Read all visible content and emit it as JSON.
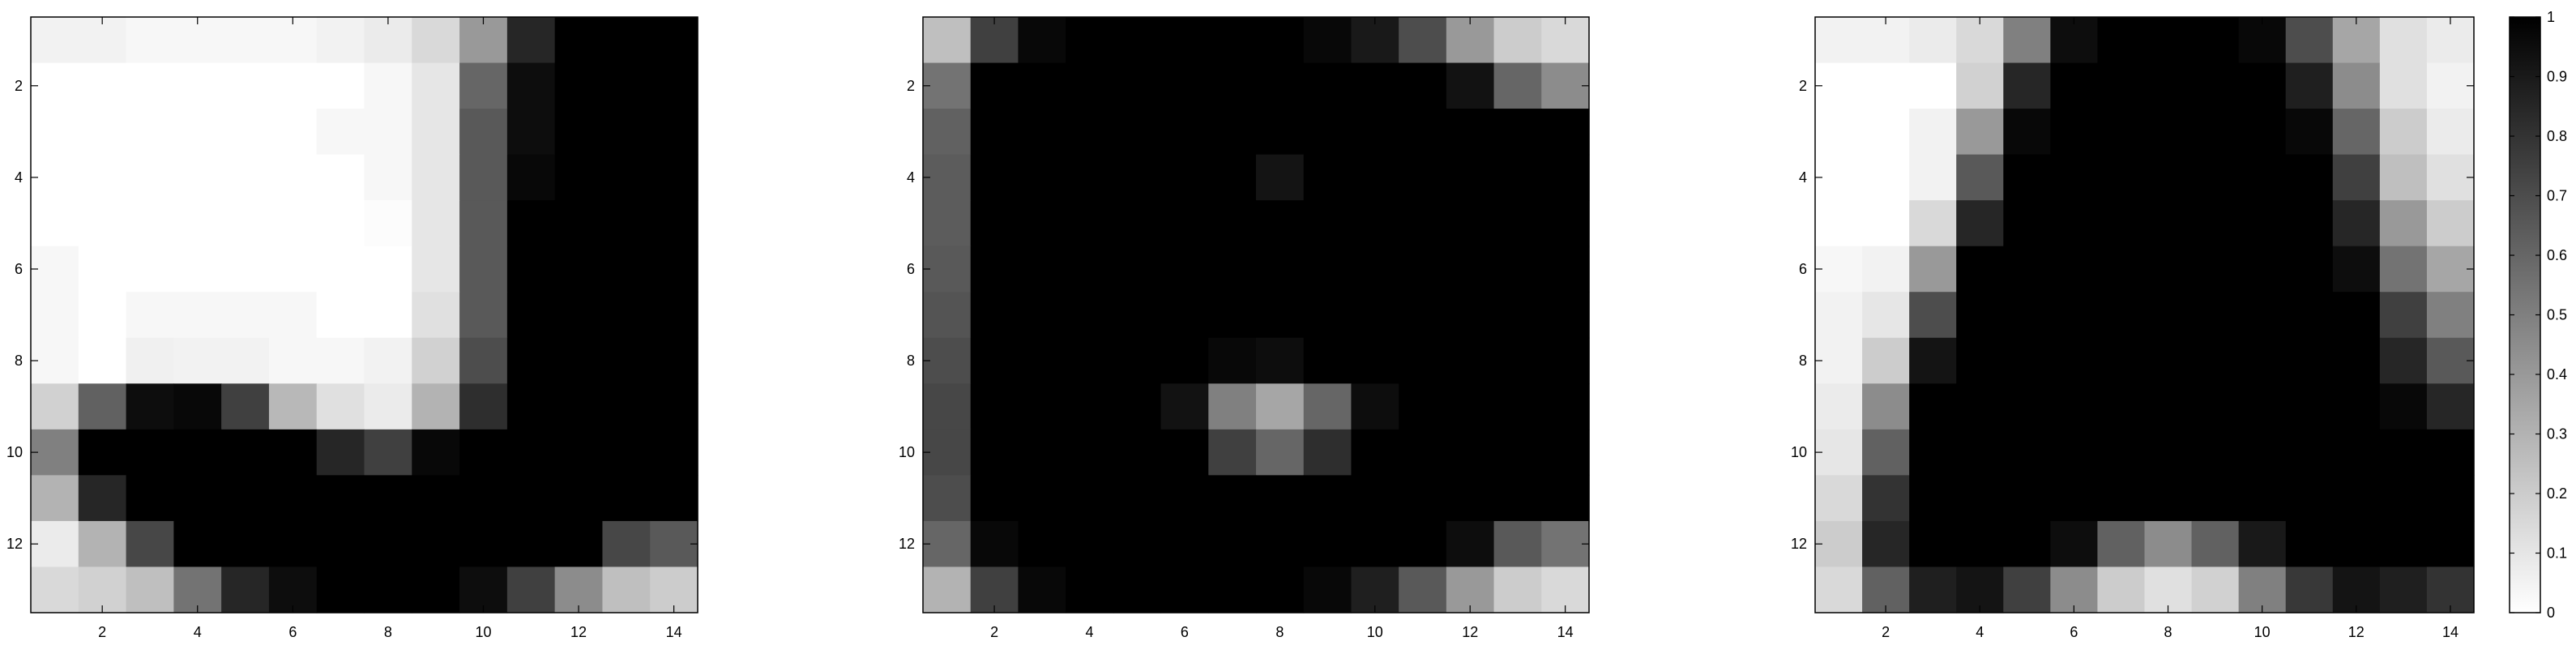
{
  "chart_data": [
    {
      "type": "heatmap",
      "title": "",
      "xlabel": "",
      "ylabel": "",
      "rows": 13,
      "cols": 14,
      "xlim": [
        0.5,
        14.5
      ],
      "ylim": [
        0.5,
        13.5
      ],
      "x_ticks": [
        2,
        4,
        6,
        8,
        10,
        12,
        14
      ],
      "y_ticks": [
        2,
        4,
        6,
        8,
        10,
        12
      ],
      "values": [
        [
          0.05,
          0.05,
          0.03,
          0.03,
          0.03,
          0.03,
          0.05,
          0.08,
          0.15,
          0.4,
          0.85,
          1,
          1,
          1
        ],
        [
          0,
          0,
          0,
          0,
          0,
          0,
          0,
          0.03,
          0.1,
          0.6,
          0.95,
          1,
          1,
          1
        ],
        [
          0,
          0,
          0,
          0,
          0,
          0,
          0.03,
          0.03,
          0.1,
          0.65,
          0.95,
          1,
          1,
          1
        ],
        [
          0,
          0,
          0,
          0,
          0,
          0,
          0,
          0.03,
          0.1,
          0.65,
          0.97,
          1,
          1,
          1
        ],
        [
          0,
          0,
          0,
          0,
          0,
          0,
          0,
          0.01,
          0.1,
          0.65,
          1,
          1,
          1,
          1
        ],
        [
          0.03,
          0,
          0,
          0,
          0,
          0,
          0,
          0,
          0.1,
          0.65,
          1,
          1,
          1,
          1
        ],
        [
          0.03,
          0,
          0.03,
          0.03,
          0.03,
          0.03,
          0,
          0,
          0.12,
          0.65,
          1,
          1,
          1,
          1
        ],
        [
          0.03,
          0,
          0.06,
          0.05,
          0.05,
          0.03,
          0.03,
          0.05,
          0.18,
          0.7,
          1,
          1,
          1,
          1
        ],
        [
          0.18,
          0.62,
          0.95,
          0.97,
          0.75,
          0.28,
          0.12,
          0.08,
          0.3,
          0.82,
          1,
          1,
          1,
          1
        ],
        [
          0.5,
          1,
          1,
          1,
          1,
          1,
          0.85,
          0.75,
          0.97,
          1,
          1,
          1,
          1,
          1
        ],
        [
          0.3,
          0.85,
          1,
          1,
          1,
          1,
          1,
          1,
          1,
          1,
          1,
          1,
          1,
          1
        ],
        [
          0.08,
          0.3,
          0.72,
          1,
          1,
          1,
          1,
          1,
          1,
          1,
          1,
          1,
          0.72,
          0.65
        ],
        [
          0.15,
          0.18,
          0.25,
          0.55,
          0.85,
          0.95,
          1,
          1,
          1,
          0.95,
          0.75,
          0.45,
          0.25,
          0.2
        ]
      ]
    },
    {
      "type": "heatmap",
      "title": "",
      "xlabel": "",
      "ylabel": "",
      "rows": 13,
      "cols": 14,
      "xlim": [
        0.5,
        14.5
      ],
      "ylim": [
        0.5,
        13.5
      ],
      "x_ticks": [
        2,
        4,
        6,
        8,
        10,
        12,
        14
      ],
      "y_ticks": [
        2,
        4,
        6,
        8,
        10,
        12
      ],
      "values": [
        [
          0.25,
          0.75,
          0.97,
          1,
          1,
          1,
          1,
          1,
          0.97,
          0.9,
          0.7,
          0.4,
          0.2,
          0.15
        ],
        [
          0.55,
          1,
          1,
          1,
          1,
          1,
          1,
          1,
          1,
          1,
          1,
          0.93,
          0.6,
          0.45
        ],
        [
          0.62,
          1,
          1,
          1,
          1,
          1,
          1,
          1,
          1,
          1,
          1,
          1,
          1,
          1
        ],
        [
          0.64,
          1,
          1,
          1,
          1,
          1,
          1,
          0.92,
          1,
          1,
          1,
          1,
          1,
          1
        ],
        [
          0.64,
          1,
          1,
          1,
          1,
          1,
          1,
          1,
          1,
          1,
          1,
          1,
          1,
          1
        ],
        [
          0.65,
          1,
          1,
          1,
          1,
          1,
          1,
          1,
          1,
          1,
          1,
          1,
          1,
          1
        ],
        [
          0.67,
          1,
          1,
          1,
          1,
          1,
          1,
          1,
          1,
          1,
          1,
          1,
          1,
          1
        ],
        [
          0.7,
          1,
          1,
          1,
          1,
          1,
          0.97,
          0.95,
          1,
          1,
          1,
          1,
          1,
          1
        ],
        [
          0.72,
          1,
          1,
          1,
          1,
          0.93,
          0.5,
          0.35,
          0.6,
          0.95,
          1,
          1,
          1,
          1
        ],
        [
          0.72,
          1,
          1,
          1,
          1,
          1,
          0.75,
          0.6,
          0.82,
          1,
          1,
          1,
          1,
          1
        ],
        [
          0.7,
          1,
          1,
          1,
          1,
          1,
          1,
          1,
          1,
          1,
          1,
          1,
          1,
          1
        ],
        [
          0.6,
          0.97,
          1,
          1,
          1,
          1,
          1,
          1,
          1,
          1,
          1,
          0.95,
          0.65,
          0.55
        ],
        [
          0.3,
          0.75,
          0.97,
          1,
          1,
          1,
          1,
          1,
          0.97,
          0.88,
          0.65,
          0.4,
          0.2,
          0.15
        ]
      ]
    },
    {
      "type": "heatmap",
      "title": "",
      "xlabel": "",
      "ylabel": "",
      "rows": 13,
      "cols": 14,
      "xlim": [
        0.5,
        14.5
      ],
      "ylim": [
        0.5,
        13.5
      ],
      "x_ticks": [
        2,
        4,
        6,
        8,
        10,
        12,
        14
      ],
      "y_ticks": [
        2,
        4,
        6,
        8,
        10,
        12
      ],
      "values": [
        [
          0.05,
          0.05,
          0.08,
          0.15,
          0.5,
          0.95,
          1,
          1,
          1,
          0.97,
          0.7,
          0.35,
          0.12,
          0.08
        ],
        [
          0,
          0,
          0,
          0.18,
          0.85,
          1,
          1,
          1,
          1,
          1,
          0.88,
          0.45,
          0.12,
          0.05
        ],
        [
          0,
          0,
          0.05,
          0.4,
          0.97,
          1,
          1,
          1,
          1,
          1,
          0.97,
          0.6,
          0.2,
          0.08
        ],
        [
          0,
          0,
          0.05,
          0.65,
          1,
          1,
          1,
          1,
          1,
          1,
          1,
          0.75,
          0.25,
          0.12
        ],
        [
          0,
          0,
          0.15,
          0.85,
          1,
          1,
          1,
          1,
          1,
          1,
          1,
          0.85,
          0.4,
          0.2
        ],
        [
          0.03,
          0.05,
          0.4,
          1,
          1,
          1,
          1,
          1,
          1,
          1,
          1,
          0.95,
          0.55,
          0.35
        ],
        [
          0.05,
          0.1,
          0.7,
          1,
          1,
          1,
          1,
          1,
          1,
          1,
          1,
          1,
          0.75,
          0.5
        ],
        [
          0.05,
          0.2,
          0.92,
          1,
          1,
          1,
          1,
          1,
          1,
          1,
          1,
          1,
          0.85,
          0.65
        ],
        [
          0.08,
          0.45,
          1,
          1,
          1,
          1,
          1,
          1,
          1,
          1,
          1,
          1,
          0.97,
          0.85
        ],
        [
          0.1,
          0.62,
          1,
          1,
          1,
          1,
          1,
          1,
          1,
          1,
          1,
          1,
          1,
          1
        ],
        [
          0.15,
          0.8,
          1,
          1,
          1,
          1,
          1,
          1,
          1,
          1,
          1,
          1,
          1,
          1
        ],
        [
          0.2,
          0.85,
          1,
          1,
          1,
          0.95,
          0.62,
          0.45,
          0.62,
          0.9,
          1,
          1,
          1,
          1
        ],
        [
          0.15,
          0.62,
          0.88,
          0.92,
          0.75,
          0.45,
          0.2,
          0.12,
          0.18,
          0.5,
          0.78,
          0.92,
          0.88,
          0.8
        ]
      ]
    }
  ],
  "colorbar": {
    "min": 0,
    "max": 1,
    "ticks": [
      "0",
      "0.1",
      "0.2",
      "0.3",
      "0.4",
      "0.5",
      "0.6",
      "0.7",
      "0.8",
      "0.9",
      "1"
    ],
    "colormap": "gray-inverted"
  },
  "colors": {
    "low": "#ffffff",
    "high": "#000000",
    "axis": "#000000"
  }
}
